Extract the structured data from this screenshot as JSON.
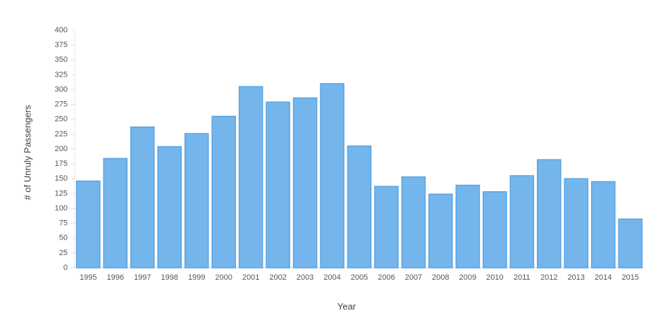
{
  "chart_data": {
    "type": "bar",
    "x_label": "Year",
    "y_label": "# of Unruly Passengers",
    "categories": [
      "1995",
      "1996",
      "1997",
      "1998",
      "1999",
      "2000",
      "2001",
      "2002",
      "2003",
      "2004",
      "2005",
      "2006",
      "2007",
      "2008",
      "2009",
      "2010",
      "2011",
      "2012",
      "2013",
      "2014",
      "2015"
    ],
    "values": [
      146,
      184,
      237,
      204,
      226,
      255,
      305,
      279,
      286,
      310,
      205,
      137,
      153,
      124,
      139,
      128,
      155,
      182,
      150,
      145,
      82
    ],
    "color": "#74b6ec",
    "ylim": [
      0,
      400
    ],
    "yticks": [
      0,
      25,
      50,
      75,
      100,
      125,
      150,
      175,
      200,
      225,
      250,
      275,
      300,
      325,
      350,
      375,
      400
    ]
  }
}
